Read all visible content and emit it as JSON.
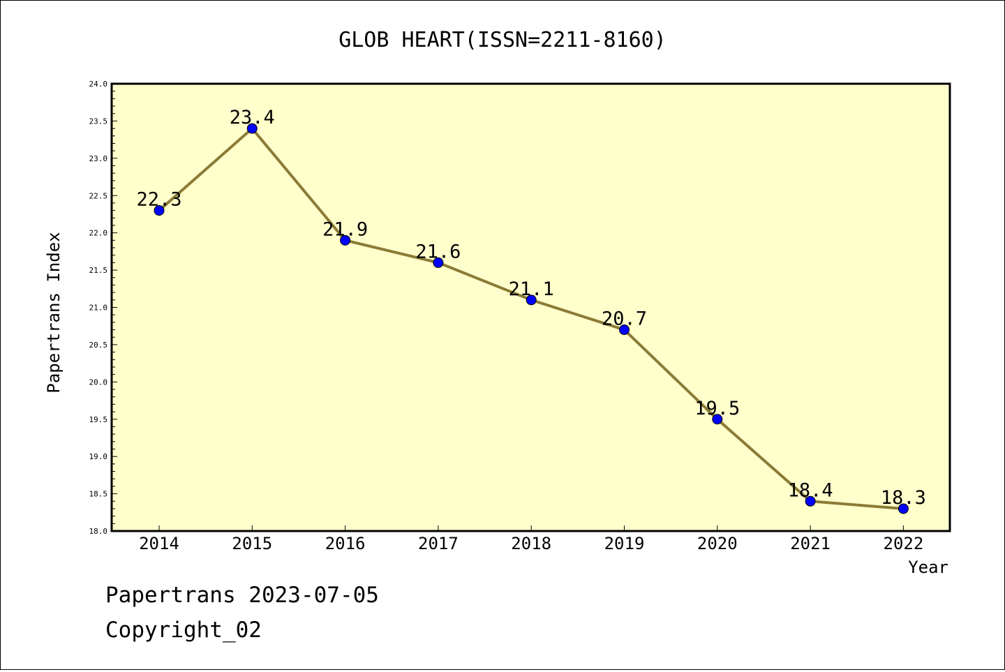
{
  "colors": {
    "plot_background": "#ffffcc",
    "line": "#8b7b36",
    "marker": "#0000ff",
    "axis": "#000000"
  },
  "footer": {
    "line1": "Papertrans 2023-07-05",
    "line2": "Copyright_02"
  },
  "chart_data": {
    "type": "line",
    "title": "GLOB HEART(ISSN=2211-8160)",
    "xlabel": "Year",
    "ylabel": "Papertrans Index",
    "categories": [
      "2014",
      "2015",
      "2016",
      "2017",
      "2018",
      "2019",
      "2020",
      "2021",
      "2022"
    ],
    "series": [
      {
        "values": [
          22.3,
          23.4,
          21.9,
          21.6,
          21.1,
          20.7,
          19.5,
          18.4,
          18.3
        ],
        "data_labels": [
          "22.3",
          "23.4",
          "21.9",
          "21.6",
          "21.1",
          "20.7",
          "19.5",
          "18.4",
          "18.3"
        ]
      }
    ],
    "ylim": [
      18.0,
      24.0
    ],
    "y_ticks": [
      "18.0",
      "18.5",
      "19.0",
      "19.5",
      "20.0",
      "20.5",
      "21.0",
      "21.5",
      "22.0",
      "22.5",
      "23.0",
      "23.5",
      "24.0"
    ],
    "grid": false,
    "legend": false
  }
}
